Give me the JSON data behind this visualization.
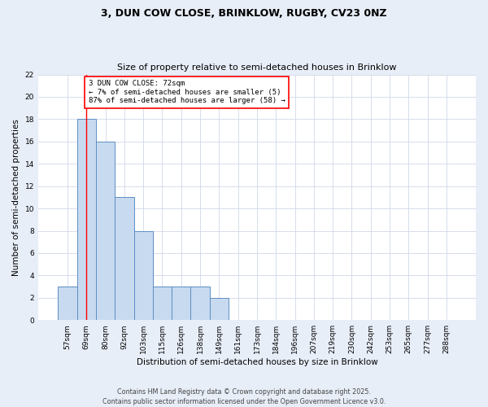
{
  "title_line1": "3, DUN COW CLOSE, BRINKLOW, RUGBY, CV23 0NZ",
  "title_line2": "Size of property relative to semi-detached houses in Brinklow",
  "xlabel": "Distribution of semi-detached houses by size in Brinklow",
  "ylabel": "Number of semi-detached properties",
  "categories": [
    "57sqm",
    "69sqm",
    "80sqm",
    "92sqm",
    "103sqm",
    "115sqm",
    "126sqm",
    "138sqm",
    "149sqm",
    "161sqm",
    "173sqm",
    "184sqm",
    "196sqm",
    "207sqm",
    "219sqm",
    "230sqm",
    "242sqm",
    "253sqm",
    "265sqm",
    "277sqm",
    "288sqm"
  ],
  "values": [
    3,
    18,
    16,
    11,
    8,
    3,
    3,
    3,
    2,
    0,
    0,
    0,
    0,
    0,
    0,
    0,
    0,
    0,
    0,
    0,
    0
  ],
  "bar_color": "#c8daf0",
  "bar_edge_color": "#5b8ec4",
  "red_line_x": 1,
  "annotation_text": "3 DUN COW CLOSE: 72sqm\n← 7% of semi-detached houses are smaller (5)\n87% of semi-detached houses are larger (58) →",
  "annotation_box_color": "white",
  "annotation_box_edge_color": "red",
  "ylim": [
    0,
    22
  ],
  "yticks": [
    0,
    2,
    4,
    6,
    8,
    10,
    12,
    14,
    16,
    18,
    20,
    22
  ],
  "plot_bg_color": "white",
  "fig_bg_color": "#e8eef8",
  "grid_color": "#d0d8e8",
  "footer_text": "Contains HM Land Registry data © Crown copyright and database right 2025.\nContains public sector information licensed under the Open Government Licence v3.0."
}
